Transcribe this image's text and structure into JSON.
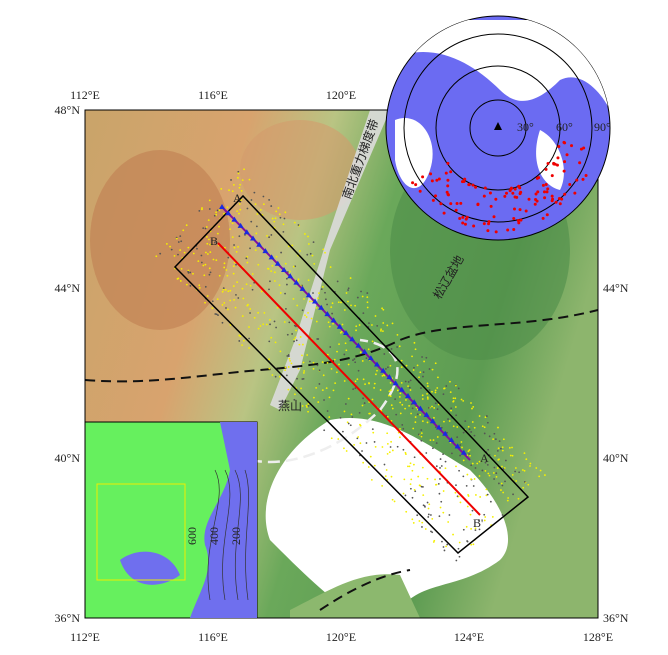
{
  "map": {
    "top_ticks": [
      "112°E",
      "116°E",
      "120°E"
    ],
    "bottom_ticks": [
      "112°E",
      "116°E",
      "120°E",
      "124°E",
      "128°E"
    ],
    "left_ticks": [
      "48°N",
      "44°N",
      "40°N",
      "36°N"
    ],
    "right_ticks": [
      "44°N",
      "40°N",
      "36°N"
    ],
    "profile_labels": [
      "A",
      "A'",
      "B",
      "B'"
    ],
    "region_labels": [
      "南北重力梯度带",
      "松辽盆地",
      "燕山"
    ],
    "polar_labels": [
      "30°",
      "60°",
      "90°"
    ],
    "inset_labels": [
      "600",
      "400",
      "200"
    ]
  }
}
